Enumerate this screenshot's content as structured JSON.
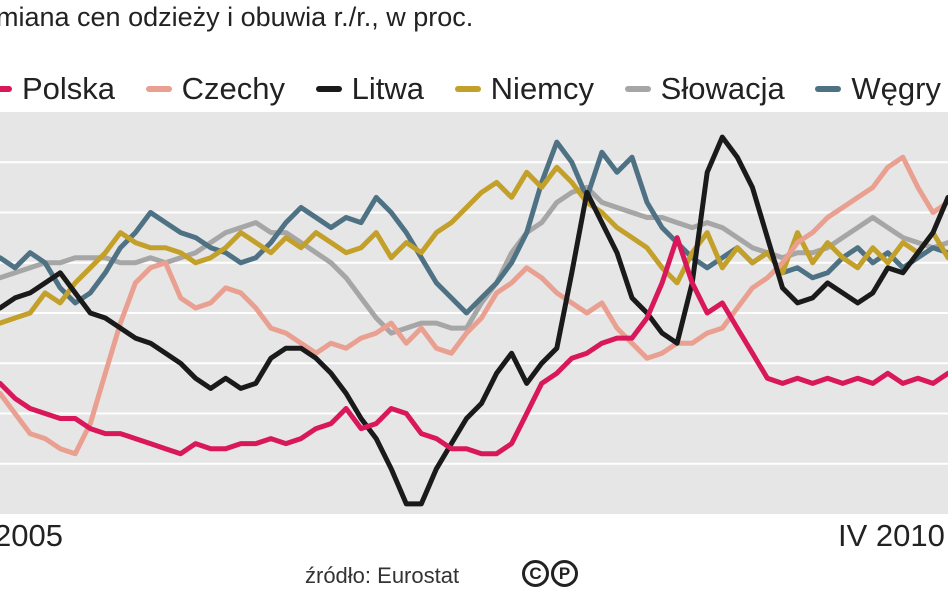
{
  "subtitle": "miana cen odzieży i obuwia r./r., w proc.",
  "legend": [
    {
      "name": "Polska",
      "color": "#d8185a"
    },
    {
      "name": "Czechy",
      "color": "#e9a090"
    },
    {
      "name": "Litwa",
      "color": "#1a1a1a"
    },
    {
      "name": "Niemcy",
      "color": "#c2a02a"
    },
    {
      "name": "Słowacja",
      "color": "#a6a6a6"
    },
    {
      "name": "Węgry",
      "color": "#4e7284"
    }
  ],
  "x_labels": {
    "start": "2005",
    "end": "IV 2010"
  },
  "source": "źródło: Eurostat",
  "icons": [
    "cc-icon",
    "p-icon"
  ],
  "chart_data": {
    "type": "line",
    "x": [
      "2005-01",
      "2005-02",
      "2005-03",
      "2005-04",
      "2005-05",
      "2005-06",
      "2005-07",
      "2005-08",
      "2005-09",
      "2005-10",
      "2005-11",
      "2005-12",
      "2006-01",
      "2006-02",
      "2006-03",
      "2006-04",
      "2006-05",
      "2006-06",
      "2006-07",
      "2006-08",
      "2006-09",
      "2006-10",
      "2006-11",
      "2006-12",
      "2007-01",
      "2007-02",
      "2007-03",
      "2007-04",
      "2007-05",
      "2007-06",
      "2007-07",
      "2007-08",
      "2007-09",
      "2007-10",
      "2007-11",
      "2007-12",
      "2008-01",
      "2008-02",
      "2008-03",
      "2008-04",
      "2008-05",
      "2008-06",
      "2008-07",
      "2008-08",
      "2008-09",
      "2008-10",
      "2008-11",
      "2008-12",
      "2009-01",
      "2009-02",
      "2009-03",
      "2009-04",
      "2009-05",
      "2009-06",
      "2009-07",
      "2009-08",
      "2009-09",
      "2009-10",
      "2009-11",
      "2009-12",
      "2010-01",
      "2010-02",
      "2010-03",
      "2010-04"
    ],
    "ylim": [
      0,
      8
    ],
    "grid": true,
    "legend_position": "top",
    "series": [
      {
        "name": "Polska",
        "color": "#d8185a",
        "values": [
          2.6,
          2.3,
          2.1,
          2.0,
          1.9,
          1.9,
          1.7,
          1.6,
          1.6,
          1.5,
          1.4,
          1.3,
          1.2,
          1.4,
          1.3,
          1.3,
          1.4,
          1.4,
          1.5,
          1.4,
          1.5,
          1.7,
          1.8,
          2.1,
          1.7,
          1.8,
          2.1,
          2.0,
          1.6,
          1.5,
          1.3,
          1.3,
          1.2,
          1.2,
          1.4,
          2.0,
          2.6,
          2.8,
          3.1,
          3.2,
          3.4,
          3.5,
          3.5,
          3.9,
          4.6,
          5.5,
          4.6,
          4.0,
          4.2,
          3.7,
          3.2,
          2.7,
          2.6,
          2.7,
          2.6,
          2.7,
          2.6,
          2.7,
          2.6,
          2.8,
          2.6,
          2.7,
          2.6,
          2.8
        ]
      },
      {
        "name": "Czechy",
        "color": "#e9a090",
        "values": [
          2.4,
          2.0,
          1.6,
          1.5,
          1.3,
          1.2,
          1.8,
          2.8,
          3.8,
          4.6,
          4.9,
          5.0,
          4.3,
          4.1,
          4.2,
          4.5,
          4.4,
          4.1,
          3.7,
          3.6,
          3.4,
          3.2,
          3.4,
          3.3,
          3.5,
          3.6,
          3.8,
          3.4,
          3.7,
          3.3,
          3.2,
          3.6,
          3.9,
          4.4,
          4.6,
          4.9,
          4.7,
          4.4,
          4.2,
          4.0,
          4.2,
          3.7,
          3.4,
          3.1,
          3.2,
          3.4,
          3.4,
          3.6,
          3.7,
          4.1,
          4.5,
          4.7,
          5.0,
          5.4,
          5.6,
          5.9,
          6.1,
          6.3,
          6.5,
          6.9,
          7.1,
          6.5,
          6.0,
          6.2
        ]
      },
      {
        "name": "Litwa",
        "color": "#1a1a1a",
        "values": [
          4.1,
          4.3,
          4.4,
          4.6,
          4.8,
          4.4,
          4.0,
          3.9,
          3.7,
          3.5,
          3.4,
          3.2,
          3.0,
          2.7,
          2.5,
          2.7,
          2.5,
          2.6,
          3.1,
          3.3,
          3.3,
          3.1,
          2.8,
          2.4,
          1.9,
          1.5,
          0.9,
          0.2,
          0.2,
          0.9,
          1.4,
          1.9,
          2.2,
          2.8,
          3.2,
          2.6,
          3.0,
          3.3,
          4.8,
          6.4,
          5.8,
          5.2,
          4.3,
          4.0,
          3.6,
          3.4,
          4.6,
          6.8,
          7.5,
          7.1,
          6.5,
          5.5,
          4.5,
          4.2,
          4.3,
          4.6,
          4.4,
          4.2,
          4.4,
          4.9,
          4.8,
          5.2,
          5.6,
          6.3
        ]
      },
      {
        "name": "Niemcy",
        "color": "#c2a02a",
        "values": [
          3.8,
          3.9,
          4.0,
          4.4,
          4.2,
          4.6,
          4.9,
          5.2,
          5.6,
          5.4,
          5.3,
          5.3,
          5.2,
          5.0,
          5.1,
          5.3,
          5.6,
          5.4,
          5.2,
          5.5,
          5.3,
          5.6,
          5.4,
          5.2,
          5.3,
          5.6,
          5.1,
          5.4,
          5.2,
          5.6,
          5.8,
          6.1,
          6.4,
          6.6,
          6.3,
          6.8,
          6.5,
          6.9,
          6.6,
          6.2,
          6.0,
          5.7,
          5.5,
          5.3,
          4.9,
          4.6,
          5.2,
          5.6,
          4.9,
          5.3,
          5.0,
          5.2,
          4.8,
          5.6,
          5.0,
          5.4,
          5.1,
          4.9,
          5.3,
          5.0,
          5.4,
          5.2,
          5.6,
          5.1
        ]
      },
      {
        "name": "Słowacja",
        "color": "#a6a6a6",
        "values": [
          4.7,
          4.8,
          4.9,
          5.0,
          5.0,
          5.1,
          5.1,
          5.1,
          5.0,
          5.0,
          5.1,
          5.0,
          5.1,
          5.2,
          5.4,
          5.6,
          5.7,
          5.8,
          5.6,
          5.6,
          5.4,
          5.2,
          5.0,
          4.7,
          4.3,
          3.9,
          3.6,
          3.7,
          3.8,
          3.8,
          3.7,
          3.7,
          4.2,
          4.6,
          5.2,
          5.6,
          5.8,
          6.2,
          6.4,
          6.5,
          6.2,
          6.1,
          6.0,
          5.9,
          5.9,
          5.8,
          5.7,
          5.8,
          5.7,
          5.5,
          5.3,
          5.2,
          5.1,
          5.2,
          5.2,
          5.3,
          5.5,
          5.7,
          5.9,
          5.7,
          5.5,
          5.4,
          5.3,
          5.4
        ]
      },
      {
        "name": "Węgry",
        "color": "#4e7284",
        "values": [
          5.1,
          4.9,
          5.2,
          5.0,
          4.5,
          4.2,
          4.4,
          4.8,
          5.3,
          5.6,
          6.0,
          5.8,
          5.6,
          5.5,
          5.3,
          5.2,
          5.0,
          5.1,
          5.4,
          5.8,
          6.1,
          5.9,
          5.7,
          5.9,
          5.8,
          6.3,
          6.0,
          5.6,
          5.1,
          4.6,
          4.3,
          4.0,
          4.3,
          4.6,
          5.0,
          5.6,
          6.6,
          7.4,
          7.0,
          6.3,
          7.2,
          6.8,
          7.1,
          6.2,
          5.7,
          5.4,
          5.1,
          4.9,
          5.1,
          5.3,
          5.0,
          5.2,
          4.8,
          4.9,
          4.7,
          4.8,
          5.1,
          5.3,
          5.0,
          5.2,
          4.9,
          5.1,
          5.3,
          5.2
        ]
      }
    ]
  }
}
